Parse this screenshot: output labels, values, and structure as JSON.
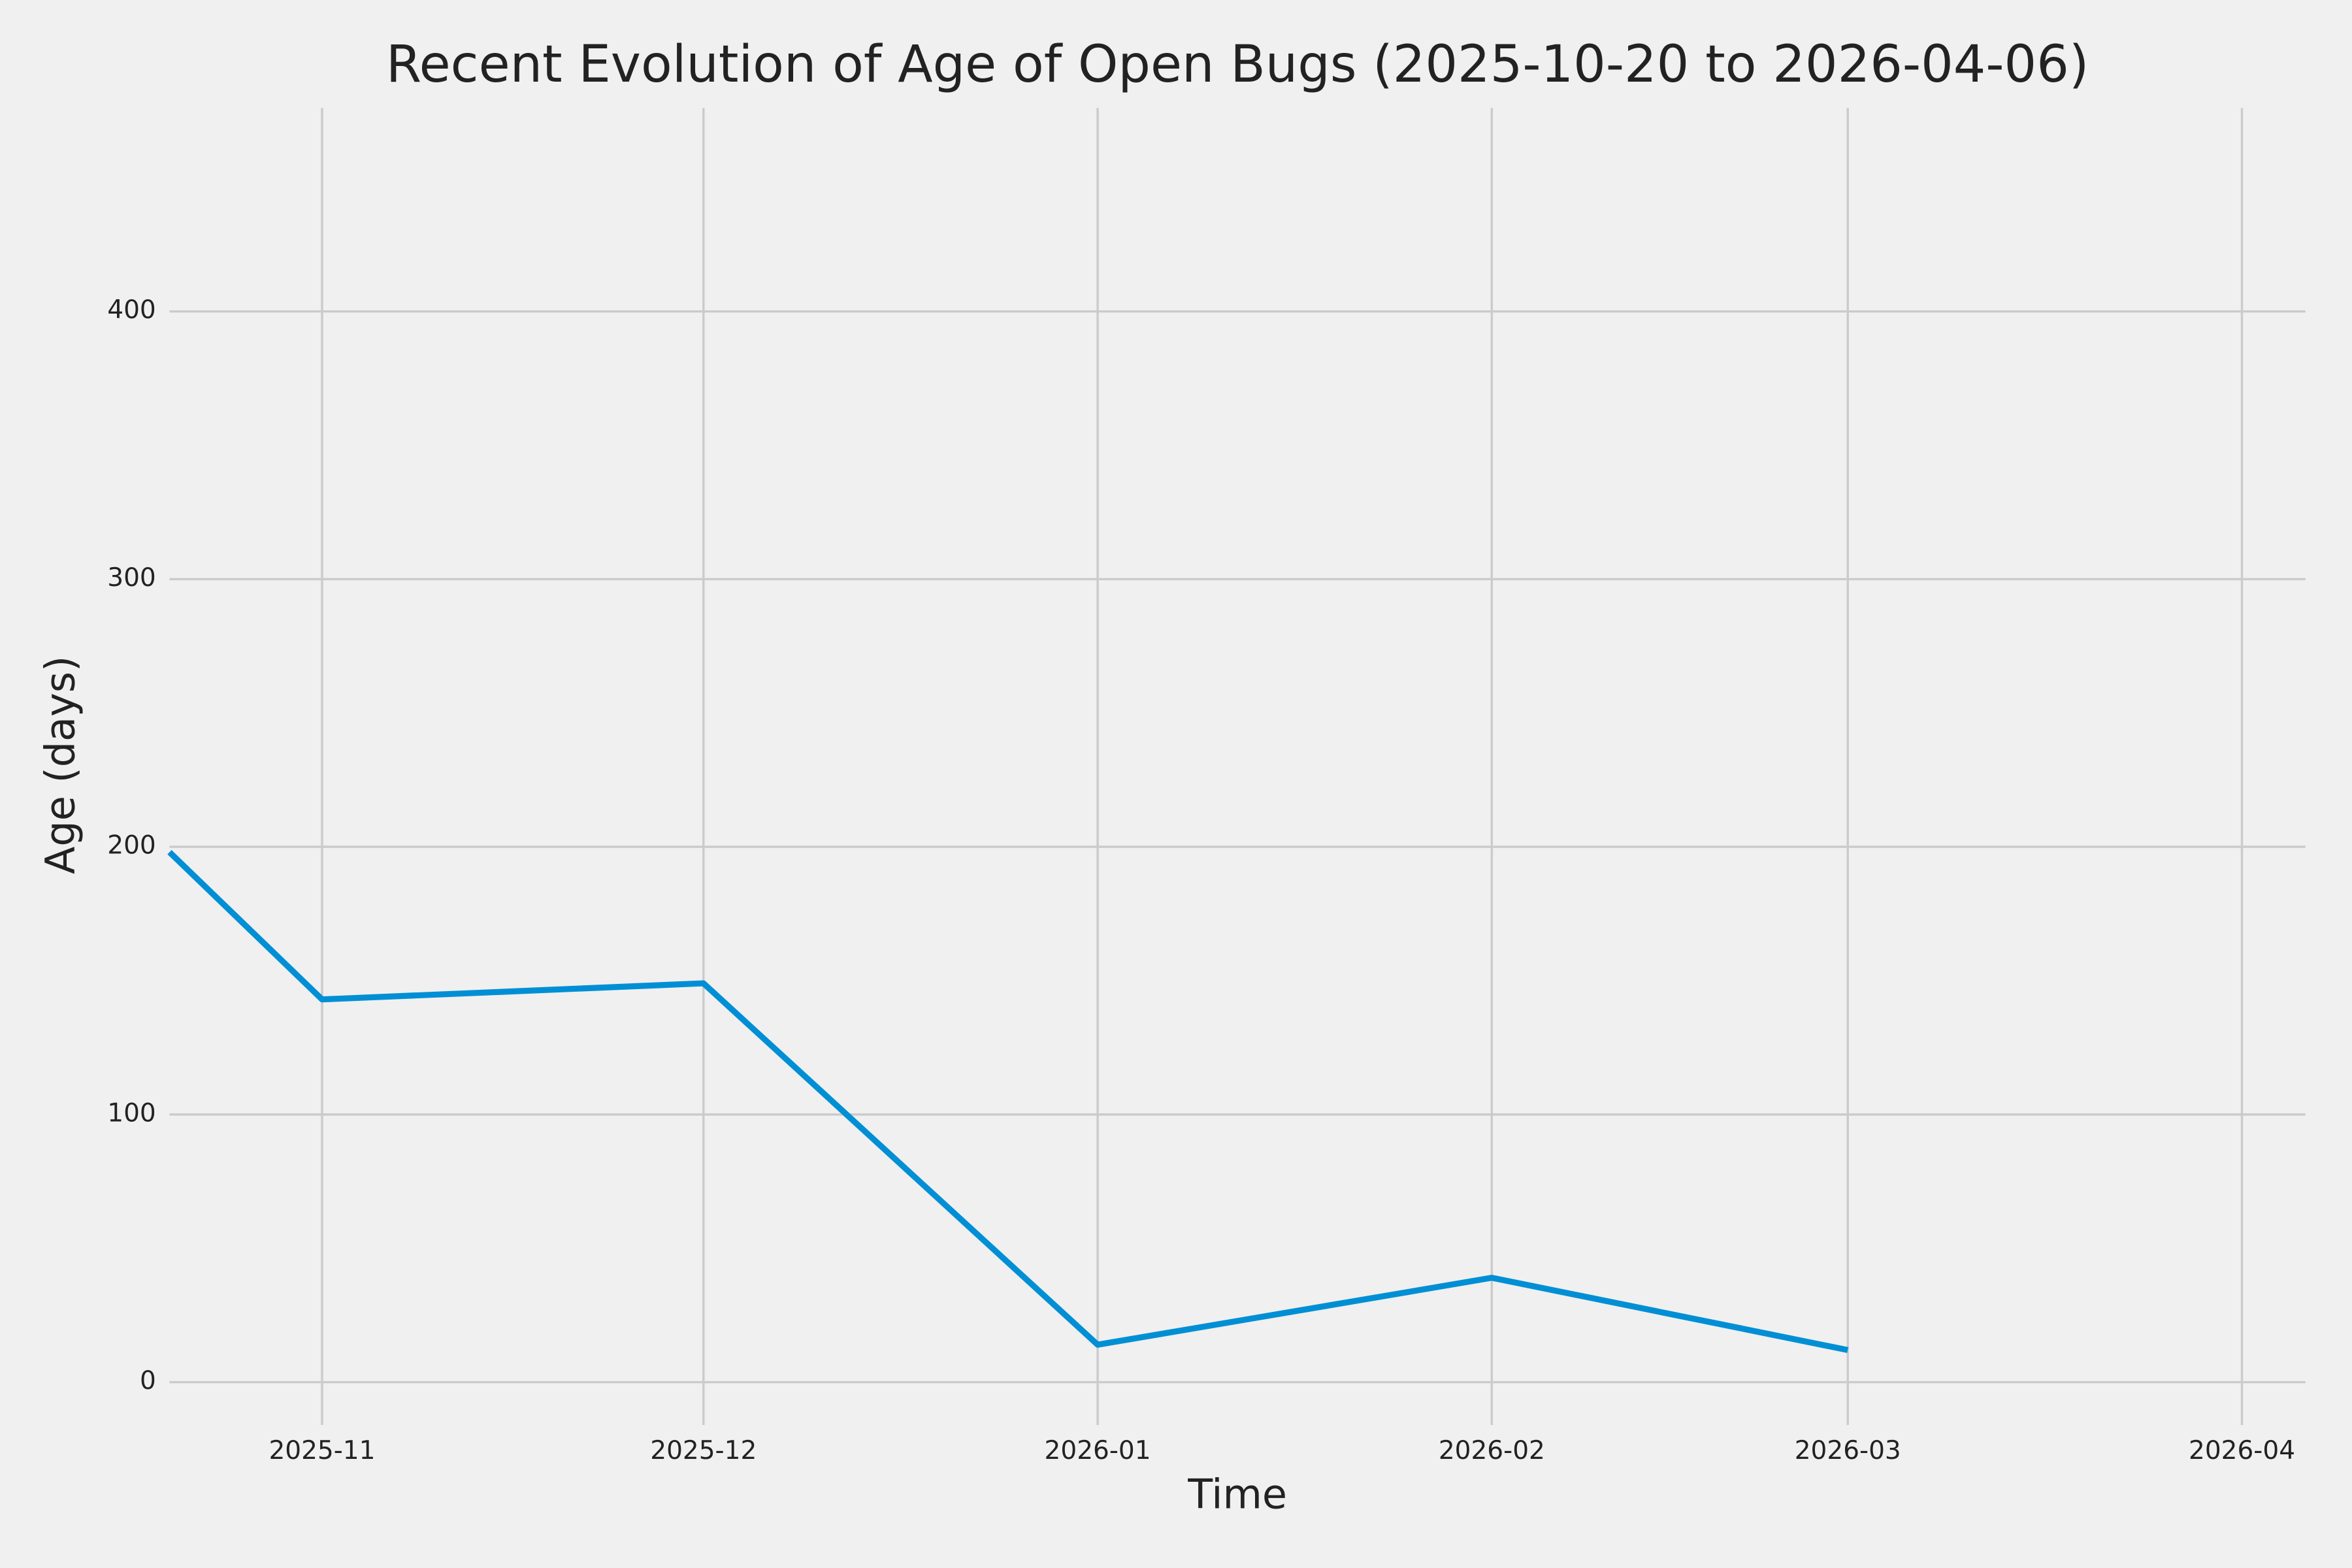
{
  "chart_data": {
    "type": "line",
    "title": "Recent Evolution of Age of Open Bugs (2025-10-20 to 2026-04-06)",
    "x_label": "Time",
    "y_label": "Age (days)",
    "x": [
      "2025-10-20",
      "2025-11",
      "2025-12",
      "2026-01",
      "2026-02",
      "2026-03"
    ],
    "values": [
      198,
      143,
      149,
      14,
      39,
      12
    ],
    "color": "#008fd5",
    "xlim": [
      "2025-10-20",
      "2026-04-06"
    ],
    "xticks": [
      "2025-11",
      "2025-12",
      "2026-01",
      "2026-02",
      "2026-03",
      "2026-04"
    ],
    "ylim": [
      -16,
      476
    ],
    "yticks": [
      0,
      100,
      200,
      300,
      400
    ],
    "grid": true
  }
}
